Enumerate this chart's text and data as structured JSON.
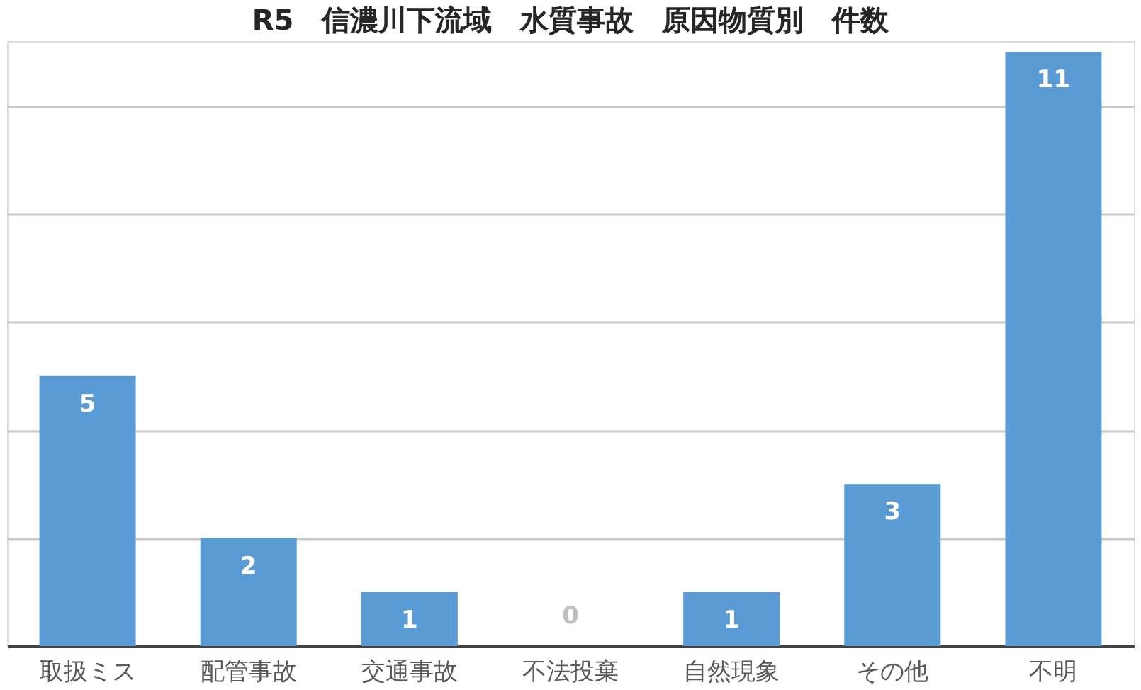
{
  "chart_data": {
    "type": "bar",
    "title": "R5　信濃川下流域　水質事故　原因物質別　件数",
    "categories": [
      "取扱ミス",
      "配管事故",
      "交通事故",
      "不法投棄",
      "自然現象",
      "その他",
      "不明"
    ],
    "values": [
      5,
      2,
      1,
      0,
      1,
      3,
      11
    ],
    "color": "#5b9bd5",
    "data_labels": true,
    "ylim": [
      0,
      11.2
    ],
    "yticks": [
      {
        "value": 0,
        "label": null
      },
      {
        "value": 2,
        "label": null
      },
      {
        "value": 4,
        "label": null
      },
      {
        "value": 6,
        "label": null
      },
      {
        "value": 8,
        "label": null
      },
      {
        "value": 10,
        "label": null
      }
    ],
    "tick_labels": "x",
    "grid": "y"
  }
}
